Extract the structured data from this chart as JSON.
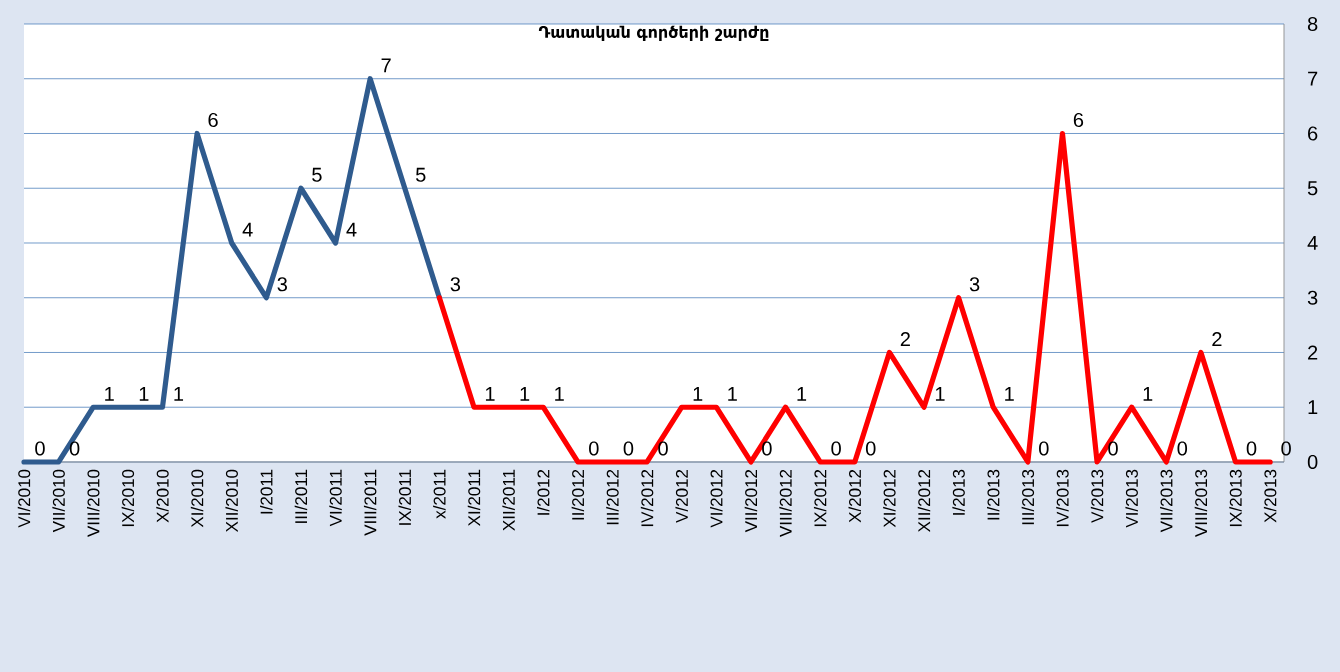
{
  "chart_data": {
    "type": "line",
    "title": "Դատական գործերի շարժը",
    "categories": [
      "VI/2010",
      "VII/2010",
      "VIII/2010",
      "IX/2010",
      "X/2010",
      "XI/2010",
      "XII/2010",
      "I/2011",
      "III/2011",
      "VI/2011",
      "VIII/2011",
      "IX/2011",
      "x/2011",
      "XI/2011",
      "XII/2011",
      "I/2012",
      "II/2012",
      "III/2012",
      "IV/2012",
      "V/2012",
      "VI/2012",
      "VII/2012",
      "VIII/2012",
      "IX/2012",
      "X/2012",
      "XI/2012",
      "XII/2012",
      "I/2013",
      "II/2013",
      "III/2013",
      "IV/2013",
      "V/2013",
      "VI/2013",
      "VII/2013",
      "VIII/2013",
      "IX/2013",
      "X/2013"
    ],
    "series": [
      {
        "color": "#2f5b8e",
        "values": [
          0,
          0,
          1,
          1,
          1,
          6,
          4,
          3,
          5,
          4,
          7,
          5,
          3,
          null,
          null,
          null,
          null,
          null,
          null,
          null,
          null,
          null,
          null,
          null,
          null,
          null,
          null,
          null,
          null,
          null,
          null,
          null,
          null,
          null,
          null,
          null,
          null
        ],
        "value_labels": [
          "0",
          "0",
          "1",
          "1",
          "1",
          "6",
          "4",
          "3",
          "5",
          "4",
          "7",
          "5",
          "3",
          null,
          null,
          null,
          null,
          null,
          null,
          null,
          null,
          null,
          null,
          null,
          null,
          null,
          null,
          null,
          null,
          null,
          null,
          null,
          null,
          null,
          null,
          null,
          null
        ]
      },
      {
        "color": "#ff0000",
        "values": [
          null,
          null,
          null,
          null,
          null,
          null,
          null,
          null,
          null,
          null,
          null,
          null,
          3,
          1,
          1,
          1,
          0,
          0,
          0,
          1,
          1,
          0,
          1,
          0,
          0,
          2,
          1,
          3,
          1,
          0,
          6,
          0,
          1,
          0,
          2,
          0,
          0
        ],
        "value_labels": [
          null,
          null,
          null,
          null,
          null,
          null,
          null,
          null,
          null,
          null,
          null,
          null,
          null,
          "1",
          "1",
          "1",
          "0",
          "0",
          "0",
          "1",
          "1",
          "0",
          "1",
          "0",
          "0",
          "2",
          "1",
          "3",
          "1",
          "0",
          "6",
          "0",
          "1",
          "0",
          "2",
          "0",
          "0"
        ]
      }
    ],
    "ylim": [
      0,
      8
    ],
    "yticks": [
      0,
      1,
      2,
      3,
      4,
      5,
      6,
      7,
      8
    ],
    "grid": "y",
    "marker": "none",
    "line_style": "solid"
  }
}
